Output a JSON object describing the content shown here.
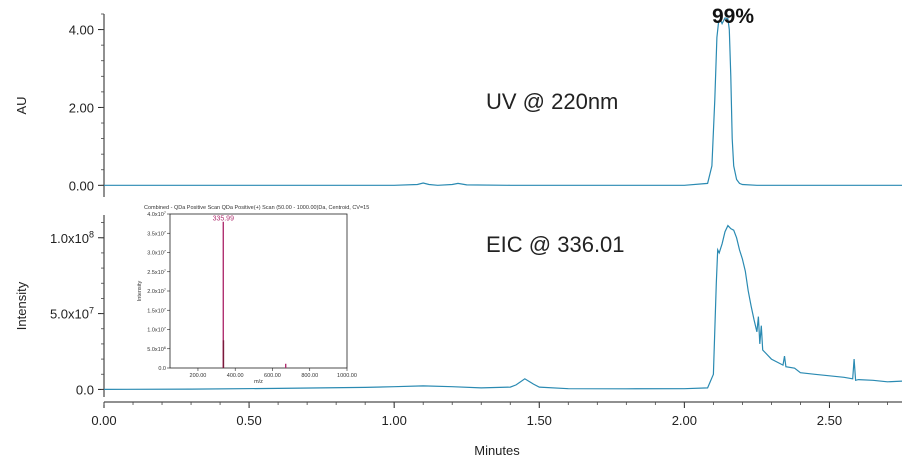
{
  "chart_data": [
    {
      "type": "line",
      "panel": "top",
      "ylabel": "AU",
      "annotation": "UV @ 220nm",
      "peak_annotation": "99%",
      "ylim": [
        -0.3,
        4.4
      ],
      "xlim": [
        0.0,
        2.75
      ],
      "yticks": [
        {
          "value": 0.0,
          "label": "0.00"
        },
        {
          "value": 2.0,
          "label": "2.00"
        },
        {
          "value": 4.0,
          "label": "4.00"
        }
      ],
      "line_color": "#2a8ab2",
      "series": [
        {
          "x": [
            0.0,
            0.25,
            0.5,
            0.75,
            1.0,
            1.08,
            1.1,
            1.12,
            1.15,
            1.2,
            1.22,
            1.25,
            1.4,
            1.6,
            1.8,
            2.0,
            2.08,
            2.095,
            2.105,
            2.112,
            2.118,
            2.125,
            2.13,
            2.14,
            2.15,
            2.155,
            2.16,
            2.165,
            2.17,
            2.18,
            2.19,
            2.2,
            2.25,
            2.4,
            2.6,
            2.75
          ],
          "y": [
            0.0,
            0.0,
            0.0,
            0.0,
            0.0,
            0.02,
            0.06,
            0.02,
            0.0,
            0.02,
            0.05,
            0.01,
            0.0,
            0.0,
            0.0,
            0.0,
            0.05,
            0.5,
            2.2,
            3.8,
            4.2,
            4.25,
            4.15,
            4.3,
            4.28,
            4.0,
            2.8,
            1.2,
            0.5,
            0.15,
            0.05,
            0.02,
            0.0,
            0.0,
            0.0,
            0.0
          ]
        }
      ]
    },
    {
      "type": "line",
      "panel": "bottom",
      "ylabel": "Intensity",
      "annotation": "EIC @ 336.01",
      "xlabel": "Minutes",
      "ylim": [
        -5000000,
        115000000
      ],
      "xlim": [
        0.0,
        2.75
      ],
      "yticks": [
        {
          "value": 0,
          "label": "0.0"
        },
        {
          "value": 50000000,
          "label": "5.0x10",
          "exp": "7"
        },
        {
          "value": 100000000,
          "label": "1.0x10",
          "exp": "8"
        }
      ],
      "xticks": [
        {
          "value": 0.0,
          "label": "0.00"
        },
        {
          "value": 0.5,
          "label": "0.50"
        },
        {
          "value": 1.0,
          "label": "1.00"
        },
        {
          "value": 1.5,
          "label": "1.50"
        },
        {
          "value": 2.0,
          "label": "2.00"
        },
        {
          "value": 2.5,
          "label": "2.50"
        }
      ],
      "line_color": "#2a8ab2",
      "series": [
        {
          "x": [
            0.0,
            0.3,
            0.6,
            0.9,
            1.0,
            1.1,
            1.2,
            1.3,
            1.4,
            1.42,
            1.45,
            1.48,
            1.5,
            1.6,
            1.8,
            2.0,
            2.08,
            2.1,
            2.11,
            2.115,
            2.12,
            2.13,
            2.14,
            2.15,
            2.16,
            2.17,
            2.18,
            2.19,
            2.2,
            2.21,
            2.22,
            2.23,
            2.24,
            2.25,
            2.255,
            2.26,
            2.265,
            2.27,
            2.28,
            2.3,
            2.32,
            2.34,
            2.345,
            2.35,
            2.38,
            2.4,
            2.45,
            2.5,
            2.55,
            2.58,
            2.585,
            2.59,
            2.6,
            2.65,
            2.7,
            2.75
          ],
          "y": [
            0,
            200000,
            700000,
            1300000,
            1800000,
            2300000,
            1800000,
            1000000,
            1500000,
            3000000,
            7000000,
            3500000,
            1500000,
            500000,
            400000,
            500000,
            1000000,
            10000000,
            70000000,
            92000000,
            90000000,
            96000000,
            104000000,
            108000000,
            106000000,
            105000000,
            100000000,
            92000000,
            86000000,
            78000000,
            65000000,
            55000000,
            46000000,
            38000000,
            48000000,
            30000000,
            42000000,
            26000000,
            24000000,
            20000000,
            18000000,
            16000000,
            22000000,
            15000000,
            14000000,
            11000000,
            10000000,
            9000000,
            8000000,
            7000000,
            20000000,
            6000000,
            6500000,
            6000000,
            5000000,
            5500000
          ]
        }
      ],
      "inset": {
        "type": "bar",
        "title": "Combined - QDa Positive Scan QDa Positive(+) Scan (50.00 - 1000.00)Da, Centroid, CV=15",
        "peak_label": "335.99",
        "xlabel": "m/z",
        "ylabel": "Intensity",
        "xlim": [
          50,
          1000
        ],
        "ylim": [
          0,
          40000000
        ],
        "xticks": [
          {
            "value": 200,
            "label": "200.00"
          },
          {
            "value": 400,
            "label": "400.00"
          },
          {
            "value": 600,
            "label": "600.00"
          },
          {
            "value": 800,
            "label": "800.00"
          },
          {
            "value": 1000,
            "label": "1000.00"
          }
        ],
        "yticks": [
          {
            "value": 0,
            "label": "0.0"
          },
          {
            "value": 5000000,
            "label": "5.0x10",
            "exp": "6"
          },
          {
            "value": 10000000,
            "label": "1.0x10",
            "exp": "7"
          },
          {
            "value": 15000000,
            "label": "1.5x10",
            "exp": "7"
          },
          {
            "value": 20000000,
            "label": "2.0x10",
            "exp": "7"
          },
          {
            "value": 25000000,
            "label": "2.5x10",
            "exp": "7"
          },
          {
            "value": 30000000,
            "label": "3.0x10",
            "exp": "7"
          },
          {
            "value": 35000000,
            "label": "3.5x10",
            "exp": "7"
          },
          {
            "value": 40000000,
            "label": "4.0x10",
            "exp": "7"
          }
        ],
        "bars": [
          {
            "mz": 335.99,
            "intensity": 38000000,
            "color": "#b03070"
          },
          {
            "mz": 337.0,
            "intensity": 7200000,
            "color": "#7a1a3a"
          },
          {
            "mz": 671.0,
            "intensity": 1100000,
            "color": "#b03070"
          }
        ]
      }
    }
  ]
}
